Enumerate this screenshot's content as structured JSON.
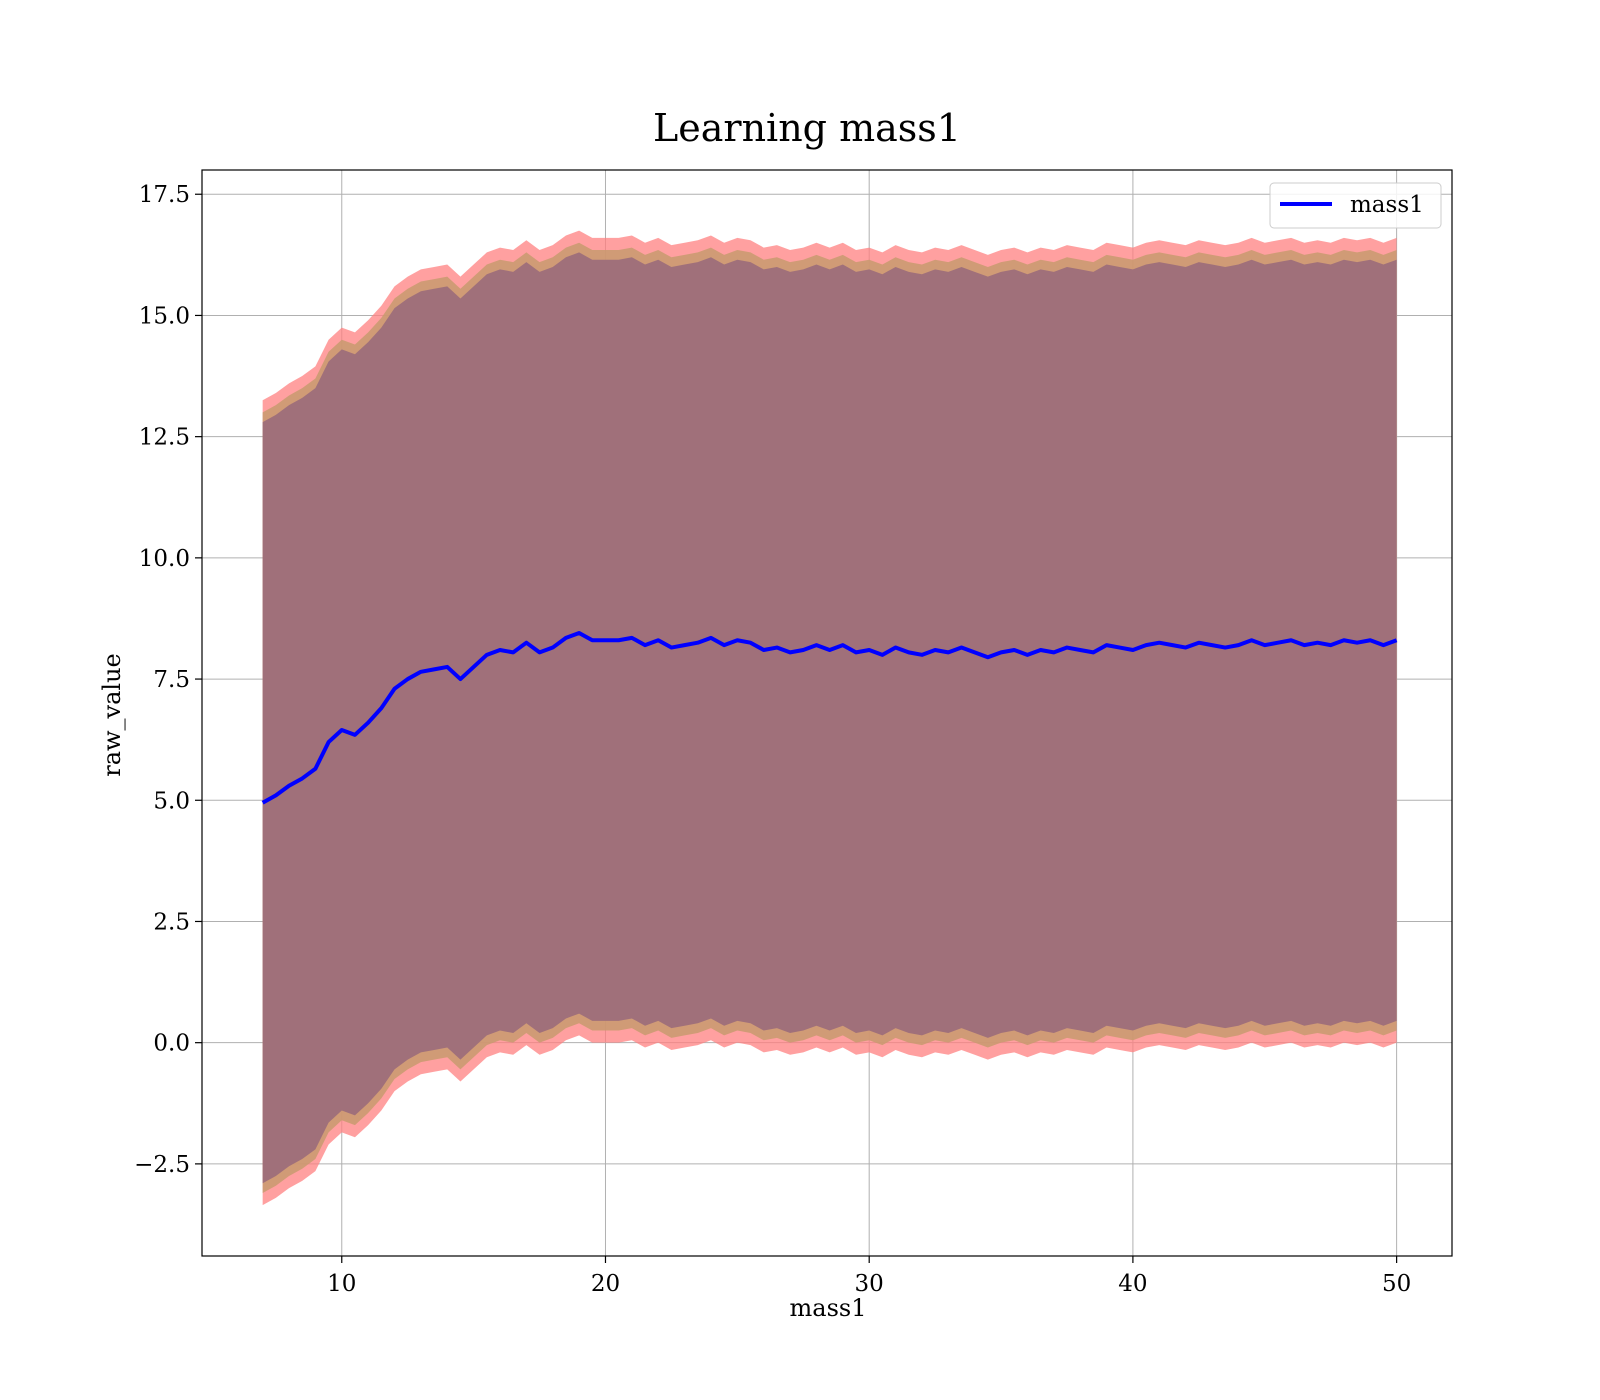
{
  "chart_data": {
    "type": "area",
    "title": "Learning mass1",
    "xlabel": "mass1",
    "ylabel": "raw_value",
    "xlim": [
      4.7,
      52.1
    ],
    "ylim": [
      -4.4,
      18.0
    ],
    "xticks": [
      10,
      20,
      30,
      40,
      50
    ],
    "yticks": [
      -2.5,
      0.0,
      2.5,
      5.0,
      7.5,
      10.0,
      12.5,
      15.0,
      17.5
    ],
    "ytick_labels": [
      "−2.5",
      "0.0",
      "2.5",
      "5.0",
      "7.5",
      "10.0",
      "12.5",
      "15.0",
      "17.5"
    ],
    "xtick_labels": [
      "10",
      "20",
      "30",
      "40",
      "50"
    ],
    "grid": true,
    "legend": {
      "placement": "top-right",
      "entries": [
        "mass1"
      ]
    },
    "colors": {
      "line": "#0000ff",
      "band_outer": "#ff8080",
      "band_mid": "#c89a6e",
      "band_inner": "#a0707a"
    },
    "series": [
      {
        "name": "mass1",
        "x": [
          7.0,
          7.5,
          8.0,
          8.5,
          9.0,
          9.5,
          10.0,
          10.5,
          11.0,
          11.5,
          12.0,
          12.5,
          13.0,
          13.5,
          14.0,
          14.5,
          15.0,
          15.5,
          16.0,
          16.5,
          17.0,
          17.5,
          18.0,
          18.5,
          19.0,
          19.5,
          20.0,
          20.5,
          21.0,
          21.5,
          22.0,
          22.5,
          23.0,
          23.5,
          24.0,
          24.5,
          25.0,
          25.5,
          26.0,
          26.5,
          27.0,
          27.5,
          28.0,
          28.5,
          29.0,
          29.5,
          30.0,
          30.5,
          31.0,
          31.5,
          32.0,
          32.5,
          33.0,
          33.5,
          34.0,
          34.5,
          35.0,
          35.5,
          36.0,
          36.5,
          37.0,
          37.5,
          38.0,
          38.5,
          39.0,
          39.5,
          40.0,
          40.5,
          41.0,
          41.5,
          42.0,
          42.5,
          43.0,
          43.5,
          44.0,
          44.5,
          45.0,
          45.5,
          46.0,
          46.5,
          47.0,
          47.5,
          48.0,
          48.5,
          49.0,
          49.5,
          50.0
        ],
        "y": [
          4.95,
          5.1,
          5.3,
          5.45,
          5.65,
          6.2,
          6.45,
          6.35,
          6.6,
          6.9,
          7.3,
          7.5,
          7.65,
          7.7,
          7.75,
          7.5,
          7.75,
          8.0,
          8.1,
          8.05,
          8.25,
          8.05,
          8.15,
          8.35,
          8.45,
          8.3,
          8.3,
          8.3,
          8.35,
          8.2,
          8.3,
          8.15,
          8.2,
          8.25,
          8.35,
          8.2,
          8.3,
          8.25,
          8.1,
          8.15,
          8.05,
          8.1,
          8.2,
          8.1,
          8.2,
          8.05,
          8.1,
          8.0,
          8.15,
          8.05,
          8.0,
          8.1,
          8.05,
          8.15,
          8.05,
          7.95,
          8.05,
          8.1,
          8.0,
          8.1,
          8.05,
          8.15,
          8.1,
          8.05,
          8.2,
          8.15,
          8.1,
          8.2,
          8.25,
          8.2,
          8.15,
          8.25,
          8.2,
          8.15,
          8.2,
          8.3,
          8.2,
          8.25,
          8.3,
          8.2,
          8.25,
          8.2,
          8.3,
          8.25,
          8.3,
          8.2,
          8.3
        ]
      }
    ],
    "bands": [
      {
        "name": "outer",
        "half_width": 8.3
      },
      {
        "name": "mid",
        "half_width": 8.05
      },
      {
        "name": "inner",
        "half_width": 7.85
      }
    ]
  }
}
